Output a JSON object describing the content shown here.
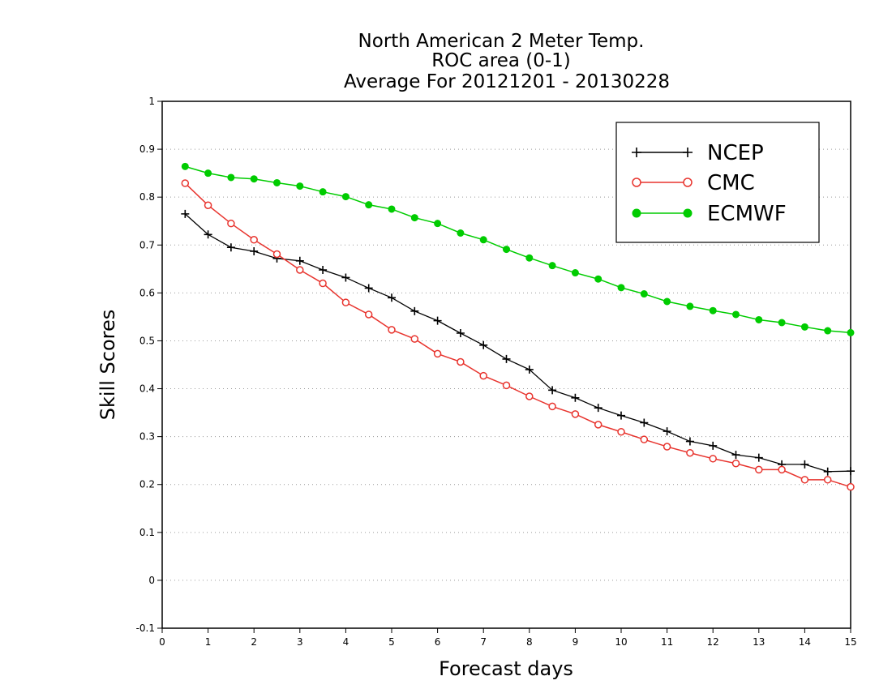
{
  "chart_data": {
    "type": "line",
    "title_lines": [
      "North American 2 Meter Temp.",
      "ROC area (0-1)",
      "Average For 20121201 - 20130228"
    ],
    "xlabel": "Forecast days",
    "ylabel": "Skill Scores",
    "xlim": [
      0,
      15
    ],
    "ylim": [
      -0.1,
      1
    ],
    "x_ticks": [
      "0",
      "1",
      "2",
      "3",
      "4",
      "5",
      "6",
      "7",
      "8",
      "9",
      "10",
      "11",
      "12",
      "13",
      "14",
      "15"
    ],
    "y_ticks": [
      "-0.1",
      "0",
      "0.1",
      "0.2",
      "0.3",
      "0.4",
      "0.5",
      "0.6",
      "0.7",
      "0.8",
      "0.9",
      "1"
    ],
    "grid": "horizontal dotted",
    "legend_position": "top-right",
    "x": [
      0.5,
      1,
      1.5,
      2,
      2.5,
      3,
      3.5,
      4,
      4.5,
      5,
      5.5,
      6,
      6.5,
      7,
      7.5,
      8,
      8.5,
      9,
      9.5,
      10,
      10.5,
      11,
      11.5,
      12,
      12.5,
      13,
      13.5,
      14,
      14.5,
      15
    ],
    "series": [
      {
        "name": "NCEP",
        "color": "#000000",
        "marker": "plus",
        "values": [
          0.765,
          0.722,
          0.695,
          0.687,
          0.672,
          0.667,
          0.648,
          0.632,
          0.61,
          0.59,
          0.562,
          0.542,
          0.516,
          0.491,
          0.462,
          0.44,
          0.397,
          0.381,
          0.36,
          0.344,
          0.329,
          0.311,
          0.29,
          0.281,
          0.262,
          0.256,
          0.242,
          0.242,
          0.227,
          0.228
        ]
      },
      {
        "name": "CMC",
        "color": "#e8342e",
        "marker": "open-circle",
        "values": [
          0.829,
          0.783,
          0.745,
          0.711,
          0.681,
          0.648,
          0.62,
          0.58,
          0.555,
          0.523,
          0.504,
          0.473,
          0.456,
          0.427,
          0.407,
          0.384,
          0.363,
          0.347,
          0.325,
          0.31,
          0.294,
          0.279,
          0.266,
          0.254,
          0.244,
          0.231,
          0.231,
          0.21,
          0.21,
          0.195
        ]
      },
      {
        "name": "ECMWF",
        "color": "#00cc00",
        "marker": "filled-circle",
        "values": [
          0.864,
          0.85,
          0.841,
          0.838,
          0.83,
          0.823,
          0.811,
          0.801,
          0.784,
          0.775,
          0.757,
          0.745,
          0.725,
          0.711,
          0.691,
          0.673,
          0.657,
          0.642,
          0.629,
          0.611,
          0.598,
          0.582,
          0.572,
          0.563,
          0.555,
          0.544,
          0.538,
          0.529,
          0.521,
          0.517
        ]
      }
    ]
  }
}
